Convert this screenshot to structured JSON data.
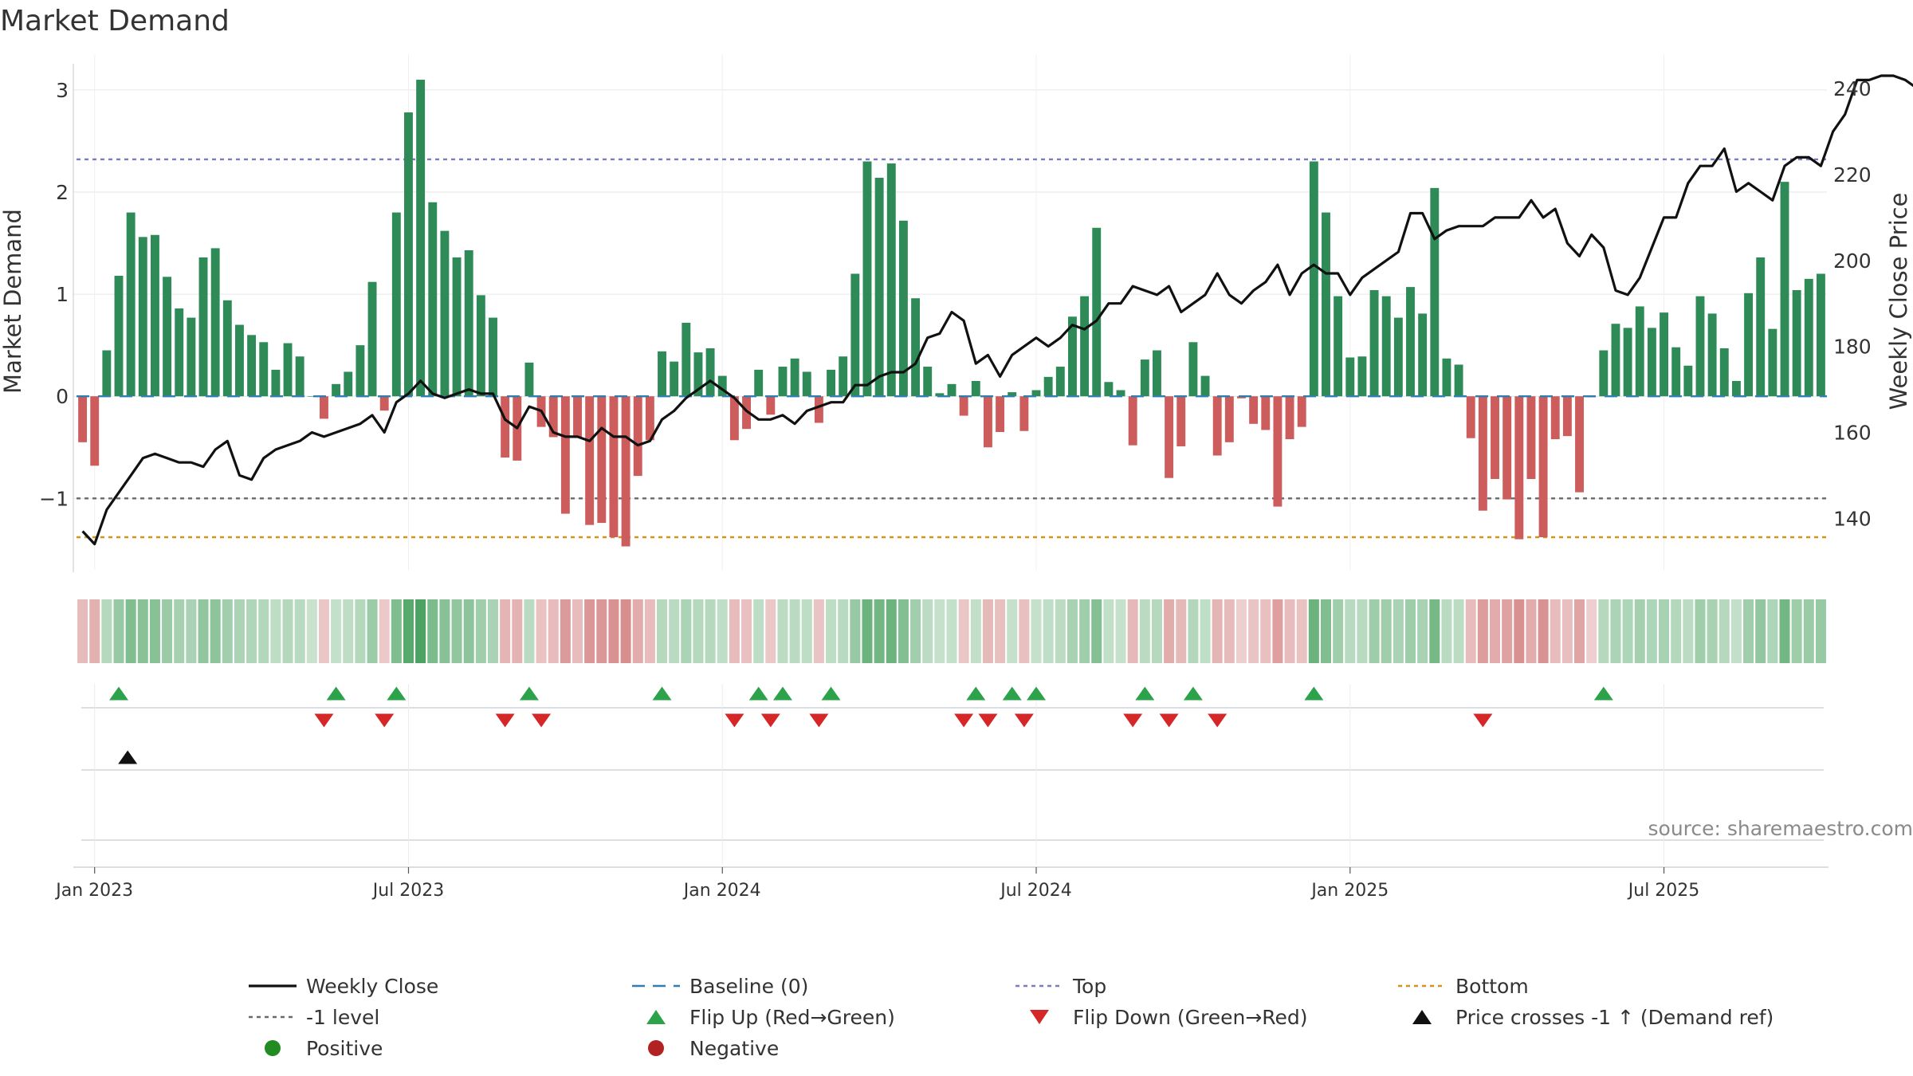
{
  "chart_data": {
    "type": "bar",
    "title": "Market Demand",
    "ylabel": "Market Demand",
    "y2label": "Weekly Close Price",
    "ylim": [
      -1.7,
      3.35
    ],
    "y2lim": [
      128,
      248
    ],
    "yticks": [
      "3",
      "2",
      "1",
      "0",
      "−1"
    ],
    "ytick_values": [
      3,
      2,
      1,
      0,
      -1
    ],
    "y2ticks": [
      "240",
      "220",
      "200",
      "180",
      "160",
      "140"
    ],
    "y2tick_values": [
      240,
      220,
      200,
      180,
      160,
      140
    ],
    "x_start": "2022-12-26",
    "xticks": [
      {
        "label": "Jan 2023",
        "week": 1
      },
      {
        "label": "Jul 2023",
        "week": 27
      },
      {
        "label": "Jan 2024",
        "week": 53
      },
      {
        "label": "Jul 2024",
        "week": 79
      },
      {
        "label": "Jan 2025",
        "week": 105
      },
      {
        "label": "Jul 2025",
        "week": 131
      }
    ],
    "reference_lines": {
      "top": 2.32,
      "minus_one": -1,
      "bottom": -1.38,
      "baseline": 0
    },
    "demand": [
      -0.45,
      -0.68,
      0.45,
      1.18,
      1.8,
      1.56,
      1.58,
      1.17,
      0.86,
      0.77,
      1.36,
      1.45,
      0.94,
      0.7,
      0.6,
      0.53,
      0.26,
      0.52,
      0.39,
      0,
      -0.22,
      0.12,
      0.24,
      0.5,
      1.12,
      -0.14,
      1.8,
      2.78,
      3.1,
      1.9,
      1.62,
      1.36,
      1.43,
      0.99,
      0.77,
      -0.6,
      -0.63,
      0.33,
      -0.3,
      -0.4,
      -1.15,
      -0.4,
      -1.26,
      -1.24,
      -1.38,
      -1.47,
      -0.78,
      -0.43,
      0.44,
      0.34,
      0.72,
      0.43,
      0.47,
      0.2,
      -0.43,
      -0.32,
      0.26,
      -0.18,
      0.29,
      0.37,
      0.24,
      -0.26,
      0.26,
      0.39,
      1.2,
      2.3,
      2.14,
      2.28,
      1.72,
      0.96,
      0.29,
      0.03,
      0.12,
      -0.19,
      0.15,
      -0.5,
      -0.35,
      0.04,
      -0.34,
      0.06,
      0.19,
      0.29,
      0.78,
      0.98,
      1.65,
      0.14,
      0.06,
      -0.48,
      0.36,
      0.45,
      -0.8,
      -0.49,
      0.53,
      0.2,
      -0.58,
      -0.45,
      -0.02,
      -0.27,
      -0.33,
      -1.08,
      -0.42,
      -0.3,
      2.3,
      1.8,
      0.98,
      0.38,
      0.39,
      1.04,
      0.98,
      0.77,
      1.07,
      0.81,
      2.04,
      0.37,
      0.31,
      -0.41,
      -1.12,
      -0.81,
      -1.01,
      -1.4,
      -0.81,
      -1.38,
      -0.42,
      -0.39,
      -0.94,
      -0.01,
      0.45,
      0.71,
      0.67,
      0.88,
      0.67,
      0.82,
      0.48,
      0.3,
      0.98,
      0.81,
      0.47,
      0.15,
      1.01,
      1.36,
      0.66,
      2.1,
      1.04,
      1.15,
      1.2
    ],
    "price": [
      137,
      134,
      142,
      146,
      150,
      154,
      155,
      154,
      153,
      153,
      152,
      156,
      158,
      150,
      149,
      154,
      156,
      157,
      158,
      160,
      159,
      160,
      161,
      162,
      164,
      160,
      167,
      169,
      172,
      169,
      168,
      169,
      170,
      169,
      169,
      163,
      161,
      166,
      165,
      160,
      159,
      159,
      158,
      161,
      159,
      159,
      157,
      158,
      163,
      165,
      168,
      170,
      172,
      170,
      168,
      165,
      163,
      163,
      164,
      162,
      165,
      166,
      167,
      167,
      171,
      171,
      173,
      174,
      174,
      176,
      182,
      183,
      188,
      186,
      176,
      178,
      173,
      178,
      180,
      182,
      180,
      182,
      185,
      184,
      186,
      190,
      190,
      194,
      193,
      192,
      194,
      188,
      190,
      192,
      197,
      192,
      190,
      193,
      195,
      199,
      192,
      197,
      199,
      197,
      197,
      192,
      196,
      198,
      200,
      202,
      211,
      211,
      205,
      207,
      208,
      208,
      208,
      210,
      210,
      210,
      214,
      210,
      212,
      204,
      201,
      206,
      203,
      193,
      192,
      196,
      203,
      210,
      210,
      218,
      222,
      222,
      226,
      216,
      218,
      216,
      214,
      222,
      224,
      224,
      222,
      230,
      234,
      242,
      242,
      243,
      243,
      242,
      240
    ],
    "heat_strip": "cell colour per week by demand value (green = positive, red = negative)",
    "flips_up": [
      3,
      21,
      26,
      37,
      48,
      56,
      58,
      62,
      74,
      77,
      79,
      88,
      92,
      102,
      126
    ],
    "flips_down": [
      20,
      25,
      35,
      38,
      54,
      57,
      61,
      73,
      75,
      78,
      87,
      90,
      94,
      116
    ],
    "price_cross_up": [
      4
    ]
  },
  "colors": {
    "positive": "#2e8b57",
    "negative": "#cd5c5c",
    "price_line": "#111111",
    "top": "#7b7bbf",
    "minus_one": "#6a6a6a",
    "bottom": "#d4931a",
    "baseline": "#2f7fb0",
    "flip_up": "#2ca24b",
    "flip_down": "#d62728",
    "cross": "#111111",
    "grid": "#e6e6e6"
  },
  "legend": [
    {
      "label": "Weekly Close",
      "marker": "line-solid",
      "color": "#111111"
    },
    {
      "label": "Baseline (0)",
      "marker": "line-dashed",
      "color": "#2f7fb0"
    },
    {
      "label": "Top",
      "marker": "line-dotted",
      "color": "#7b7bbf"
    },
    {
      "label": "Bottom",
      "marker": "line-dotted",
      "color": "#d4931a"
    },
    {
      "label": "-1 level",
      "marker": "line-dotted",
      "color": "#6a6a6a"
    },
    {
      "label": "Flip Up (Red→Green)",
      "marker": "triangle-up",
      "color": "#2ca24b"
    },
    {
      "label": "Flip Down (Green→Red)",
      "marker": "triangle-down",
      "color": "#d62728"
    },
    {
      "label": "Price crosses -1 ↑ (Demand ref)",
      "marker": "triangle-up",
      "color": "#111111"
    },
    {
      "label": "Positive",
      "marker": "circle",
      "color": "#228b22"
    },
    {
      "label": "Negative",
      "marker": "circle",
      "color": "#b22222"
    }
  ],
  "source": "source: sharemaestro.com"
}
